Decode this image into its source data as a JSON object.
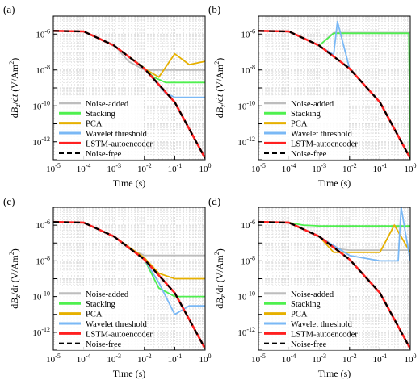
{
  "figure": {
    "panels": [
      "(a)",
      "(b)",
      "(c)",
      "(d)"
    ]
  },
  "chart_data": [
    {
      "type": "line",
      "panel_label": "(a)",
      "xlabel": "Time (s)",
      "ylabel": "dBz/dt  (V/Am2)",
      "xscale": "log",
      "yscale": "log",
      "xlim": [
        1e-05,
        1
      ],
      "ylim": [
        1e-13,
        1e-05
      ],
      "x_ticks": [
        "10-5",
        "10-4",
        "10-3",
        "10-2",
        "10-1",
        "100"
      ],
      "y_ticks": [
        "10-12",
        "10-10",
        "10-8",
        "10-6"
      ],
      "grid": true,
      "legend_position": "bottom-left",
      "series": [
        {
          "name": "Noise-added",
          "color": "#bdbdbd",
          "x": [
            1e-05,
            0.0001,
            0.001,
            0.003,
            0.01,
            0.03,
            0.1,
            0.3,
            1
          ],
          "y": [
            1.5e-06,
            1.4e-06,
            2.5e-07,
            3e-08,
            1e-08,
            1e-08,
            1e-08,
            1e-08,
            1e-08
          ]
        },
        {
          "name": "Stacking",
          "color": "#4ef04e",
          "x": [
            1e-05,
            0.0001,
            0.001,
            0.01,
            0.02,
            0.05,
            0.1,
            0.3,
            1
          ],
          "y": [
            1.5e-06,
            1.4e-06,
            2.3e-07,
            1.3e-08,
            4e-09,
            2e-09,
            2e-09,
            2e-09,
            2e-09
          ]
        },
        {
          "name": "PCA",
          "color": "#e6b000",
          "x": [
            1e-05,
            0.0001,
            0.001,
            0.01,
            0.03,
            0.1,
            0.3,
            1
          ],
          "y": [
            1.5e-06,
            1.4e-06,
            2.3e-07,
            1.2e-08,
            4e-09,
            8e-08,
            2e-08,
            3e-08
          ]
        },
        {
          "name": "Wavelet threshold",
          "color": "#7ab8f5",
          "x": [
            1e-05,
            0.0001,
            0.001,
            0.01,
            0.02,
            0.05,
            0.1,
            0.3,
            1
          ],
          "y": [
            1.5e-06,
            1.4e-06,
            2.3e-07,
            1.2e-08,
            3e-09,
            5e-10,
            3e-10,
            3e-10,
            3e-10
          ]
        },
        {
          "name": "LSTM-autoencoder",
          "color": "#ff2020",
          "x": [
            1e-05,
            0.0001,
            0.001,
            0.01,
            0.1,
            1
          ],
          "y": [
            1.5e-06,
            1.4e-06,
            2.3e-07,
            1.2e-08,
            1.6e-10,
            1.2e-13
          ]
        },
        {
          "name": "Noise-free",
          "color": "#000000",
          "x": [
            1e-05,
            0.0001,
            0.001,
            0.01,
            0.1,
            1
          ],
          "y": [
            1.5e-06,
            1.4e-06,
            2.3e-07,
            1.2e-08,
            1.6e-10,
            1.2e-13
          ]
        }
      ]
    },
    {
      "type": "line",
      "panel_label": "(b)",
      "xlabel": "Time (s)",
      "ylabel": "dBz/dt  (V/Am2)",
      "xscale": "log",
      "yscale": "log",
      "xlim": [
        1e-05,
        1
      ],
      "ylim": [
        1e-13,
        1e-05
      ],
      "x_ticks": [
        "10-5",
        "10-4",
        "10-3",
        "10-2",
        "10-1",
        "100"
      ],
      "y_ticks": [
        "10-12",
        "10-10",
        "10-8",
        "10-6"
      ],
      "grid": true,
      "legend_position": "bottom-left",
      "series": [
        {
          "name": "Noise-added",
          "color": "#bdbdbd",
          "x": [
            1e-05,
            0.0001,
            0.001,
            0.003,
            0.01,
            0.1,
            1
          ],
          "y": [
            1.5e-06,
            1.4e-06,
            2.3e-07,
            1.2e-06,
            1.2e-06,
            1.2e-06,
            1.2e-06
          ]
        },
        {
          "name": "Stacking",
          "color": "#4ef04e",
          "x": [
            1e-05,
            0.0001,
            0.001,
            0.003,
            0.01,
            0.1,
            0.9,
            1
          ],
          "y": [
            1.5e-06,
            1.4e-06,
            2.3e-07,
            1.1e-06,
            1.1e-06,
            1.1e-06,
            1.1e-06,
            1e-13
          ]
        },
        {
          "name": "PCA",
          "color": "#e6b000",
          "x": [
            1e-05,
            0.0001,
            0.001,
            0.01,
            0.1,
            1
          ],
          "y": [
            1.5e-06,
            1.4e-06,
            2.3e-07,
            1.2e-08,
            1.6e-10,
            1.2e-13
          ]
        },
        {
          "name": "Wavelet threshold",
          "color": "#7ab8f5",
          "x": [
            1e-05,
            0.0001,
            0.001,
            0.003,
            0.004,
            0.01,
            0.1,
            1
          ],
          "y": [
            1.5e-06,
            1.4e-06,
            2.3e-07,
            7e-08,
            5e-06,
            1.2e-08,
            1.6e-10,
            1.2e-13
          ]
        },
        {
          "name": "LSTM-autoencoder",
          "color": "#ff2020",
          "x": [
            1e-05,
            0.0001,
            0.001,
            0.01,
            0.1,
            1
          ],
          "y": [
            1.5e-06,
            1.4e-06,
            2.3e-07,
            1.2e-08,
            1.6e-10,
            1.2e-13
          ]
        },
        {
          "name": "Noise-free",
          "color": "#000000",
          "x": [
            1e-05,
            0.0001,
            0.001,
            0.01,
            0.1,
            1
          ],
          "y": [
            1.5e-06,
            1.4e-06,
            2.3e-07,
            1.2e-08,
            1.6e-10,
            1.2e-13
          ]
        }
      ]
    },
    {
      "type": "line",
      "panel_label": "(c)",
      "xlabel": "Time (s)",
      "ylabel": "dBz/dt  (V/Am2)",
      "xscale": "log",
      "yscale": "log",
      "xlim": [
        1e-05,
        1
      ],
      "ylim": [
        1e-13,
        1e-05
      ],
      "x_ticks": [
        "10-5",
        "10-4",
        "10-3",
        "10-2",
        "10-1",
        "100"
      ],
      "y_ticks": [
        "10-12",
        "10-10",
        "10-8",
        "10-6"
      ],
      "grid": true,
      "legend_position": "bottom-left",
      "series": [
        {
          "name": "Noise-added",
          "color": "#bdbdbd",
          "x": [
            1e-05,
            0.0001,
            0.001,
            0.003,
            0.01,
            0.1,
            1
          ],
          "y": [
            1.5e-06,
            1.4e-06,
            2.3e-07,
            5e-08,
            2e-08,
            2e-08,
            2e-08
          ]
        },
        {
          "name": "Stacking",
          "color": "#4ef04e",
          "x": [
            1e-05,
            0.0001,
            0.001,
            0.01,
            0.03,
            0.1,
            0.3,
            1
          ],
          "y": [
            1.5e-06,
            1.4e-06,
            2.3e-07,
            1.2e-08,
            3e-10,
            1e-10,
            1e-10,
            1e-10
          ]
        },
        {
          "name": "PCA",
          "color": "#e6b000",
          "x": [
            1e-05,
            0.0001,
            0.001,
            0.01,
            0.03,
            0.1,
            0.3,
            1
          ],
          "y": [
            1.5e-06,
            1.4e-06,
            2.3e-07,
            1.5e-08,
            2e-09,
            1e-09,
            1e-09,
            1e-09
          ]
        },
        {
          "name": "Wavelet threshold",
          "color": "#7ab8f5",
          "x": [
            1e-05,
            0.0001,
            0.001,
            0.01,
            0.03,
            0.1,
            0.3,
            1
          ],
          "y": [
            1.5e-06,
            1.4e-06,
            2.3e-07,
            1.2e-08,
            6e-10,
            1e-11,
            3e-11,
            3e-11
          ]
        },
        {
          "name": "LSTM-autoencoder",
          "color": "#ff2020",
          "x": [
            1e-05,
            0.0001,
            0.001,
            0.01,
            0.1,
            1
          ],
          "y": [
            1.5e-06,
            1.4e-06,
            2.3e-07,
            1.2e-08,
            1.6e-10,
            1.2e-13
          ]
        },
        {
          "name": "Noise-free",
          "color": "#000000",
          "x": [
            1e-05,
            0.0001,
            0.001,
            0.01,
            0.1,
            1
          ],
          "y": [
            1.5e-06,
            1.4e-06,
            2.3e-07,
            1.2e-08,
            1.6e-10,
            1.2e-13
          ]
        }
      ]
    },
    {
      "type": "line",
      "panel_label": "(d)",
      "xlabel": "Time (s)",
      "ylabel": "dBz/dt  (V/Am2)",
      "xscale": "log",
      "yscale": "log",
      "xlim": [
        1e-05,
        1
      ],
      "ylim": [
        1e-13,
        1e-05
      ],
      "x_ticks": [
        "10-5",
        "10-4",
        "10-3",
        "10-2",
        "10-1",
        "100"
      ],
      "y_ticks": [
        "10-12",
        "10-10",
        "10-8",
        "10-6"
      ],
      "grid": true,
      "legend_position": "bottom-left",
      "series": [
        {
          "name": "Noise-added",
          "color": "#bdbdbd",
          "x": [
            1e-05,
            0.0001,
            0.001,
            0.003,
            0.01,
            0.1,
            1
          ],
          "y": [
            1.5e-06,
            1.4e-06,
            2.3e-07,
            5e-08,
            4e-08,
            4e-08,
            4e-08
          ]
        },
        {
          "name": "Stacking",
          "color": "#4ef04e",
          "x": [
            1e-05,
            0.0001,
            0.0003,
            0.001,
            0.01,
            0.1,
            1
          ],
          "y": [
            1.5e-06,
            1.4e-06,
            1e-06,
            9e-07,
            9e-07,
            9e-07,
            9e-07
          ]
        },
        {
          "name": "PCA",
          "color": "#e6b000",
          "x": [
            1e-05,
            0.0001,
            0.001,
            0.003,
            0.01,
            0.1,
            0.3,
            1
          ],
          "y": [
            1.5e-06,
            1.4e-06,
            2.3e-07,
            3e-08,
            3e-08,
            3e-08,
            1e-06,
            3e-08
          ]
        },
        {
          "name": "Wavelet threshold",
          "color": "#7ab8f5",
          "x": [
            1e-05,
            0.0001,
            0.001,
            0.01,
            0.1,
            0.4,
            0.5,
            1
          ],
          "y": [
            1.5e-06,
            1.4e-06,
            2.3e-07,
            2e-08,
            1e-08,
            1e-08,
            1e-05,
            1e-08
          ]
        },
        {
          "name": "LSTM-autoencoder",
          "color": "#ff2020",
          "x": [
            1e-05,
            0.0001,
            0.001,
            0.01,
            0.1,
            1
          ],
          "y": [
            1.5e-06,
            1.4e-06,
            2.3e-07,
            1.2e-08,
            1.6e-10,
            1.2e-13
          ]
        },
        {
          "name": "Noise-free",
          "color": "#000000",
          "x": [
            1e-05,
            0.0001,
            0.001,
            0.01,
            0.1,
            1
          ],
          "y": [
            1.5e-06,
            1.4e-06,
            2.3e-07,
            1.2e-08,
            1.6e-10,
            1.2e-13
          ]
        }
      ]
    }
  ]
}
